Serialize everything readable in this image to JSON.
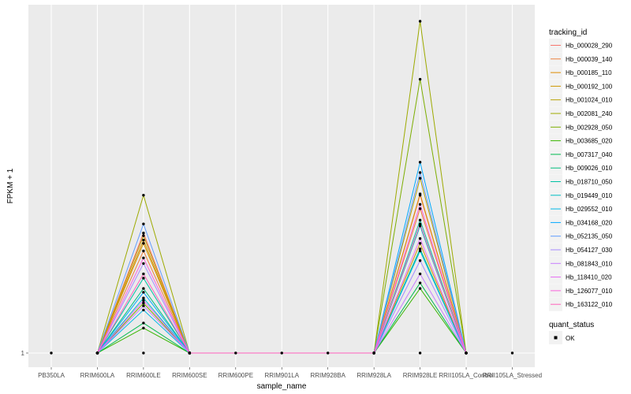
{
  "chart_data": {
    "type": "line",
    "xlabel": "sample_name",
    "ylabel": "FPKM + 1",
    "y_scale": "log",
    "y_ticks": [
      "1"
    ],
    "grid": true,
    "legend_placement": "right",
    "background_color": "#ebebeb",
    "grid_color": "#ffffff",
    "categories": [
      "PB350LA",
      "RRIM600LA",
      "RRIM600LE",
      "RRIM600SE",
      "RRIM600PE",
      "RRIM901LA",
      "RRIM928BA",
      "RRIM928LA",
      "RRIM928LE",
      "RRII105LA_Control",
      "RRII105LA_Stressed"
    ],
    "category_labels": [
      "PB350LA",
      "RRIM600LA",
      "RRIM600LE",
      "RRIM600SE",
      "RRIM600PE",
      "RRIM901LA",
      "RRIM928BA",
      "RRIM928LA",
      "RRIM928LE",
      "RRII105LA_Control",
      "RRII105LA_Stressed"
    ],
    "legend_title": "tracking_id",
    "series": [
      {
        "name": "Hb_000028_290",
        "color": "#f8766d",
        "values": [
          null,
          1,
          28,
          1,
          null,
          null,
          null,
          1,
          80,
          1,
          null
        ]
      },
      {
        "name": "Hb_000039_140",
        "color": "#ed813e",
        "values": [
          null,
          1,
          17,
          1,
          null,
          null,
          null,
          1,
          55,
          1,
          null
        ]
      },
      {
        "name": "Hb_000185_110",
        "color": "#de8c00",
        "values": [
          null,
          1,
          23,
          1,
          null,
          null,
          null,
          1,
          83,
          1,
          null
        ]
      },
      {
        "name": "Hb_000192_100",
        "color": "#cd9600",
        "values": [
          null,
          1,
          21,
          1,
          null,
          null,
          null,
          1,
          21,
          1,
          null
        ]
      },
      {
        "name": "Hb_001024_010",
        "color": "#b79f00",
        "values": [
          null,
          1,
          26,
          1,
          null,
          null,
          null,
          1,
          128,
          1,
          null
        ]
      },
      {
        "name": "Hb_002081_240",
        "color": "#9daa00",
        "values": [
          null,
          1,
          80,
          1,
          null,
          null,
          null,
          1,
          10000,
          1,
          null
        ]
      },
      {
        "name": "Hb_002928_050",
        "color": "#7cae00",
        "values": [
          null,
          1,
          4,
          1,
          null,
          null,
          null,
          1,
          2000,
          1,
          null
        ]
      },
      {
        "name": "Hb_003685_020",
        "color": "#39b600",
        "values": [
          null,
          1,
          2,
          1,
          null,
          null,
          null,
          1,
          6,
          1,
          null
        ]
      },
      {
        "name": "Hb_007317_040",
        "color": "#00bb4e",
        "values": [
          null,
          1,
          2.3,
          1,
          null,
          null,
          null,
          1,
          7,
          1,
          null
        ]
      },
      {
        "name": "Hb_009026_010",
        "color": "#00bf7d",
        "values": [
          null,
          1,
          6,
          1,
          null,
          null,
          null,
          1,
          18,
          1,
          null
        ]
      },
      {
        "name": "Hb_018710_050",
        "color": "#00c1a3",
        "values": [
          null,
          1,
          8,
          1,
          null,
          null,
          null,
          1,
          40,
          1,
          null
        ]
      },
      {
        "name": "Hb_019449_010",
        "color": "#00bfc4",
        "values": [
          null,
          1,
          4.6,
          1,
          null,
          null,
          null,
          1,
          34,
          1,
          null
        ]
      },
      {
        "name": "Hb_029552_010",
        "color": "#00b8e7",
        "values": [
          null,
          1,
          3.3,
          1,
          null,
          null,
          null,
          1,
          17,
          1,
          null
        ]
      },
      {
        "name": "Hb_034168_020",
        "color": "#00a9ff",
        "values": [
          null,
          1,
          5.4,
          1,
          null,
          null,
          null,
          1,
          200,
          1,
          null
        ]
      },
      {
        "name": "Hb_052135_050",
        "color": "#619cff",
        "values": [
          null,
          1,
          36,
          1,
          null,
          null,
          null,
          1,
          150,
          1,
          null
        ]
      },
      {
        "name": "Hb_054127_030",
        "color": "#a58aff",
        "values": [
          null,
          1,
          12,
          1,
          null,
          null,
          null,
          1,
          13,
          1,
          null
        ]
      },
      {
        "name": "Hb_081843_010",
        "color": "#c77cff",
        "values": [
          null,
          1,
          3.7,
          1,
          null,
          null,
          null,
          1,
          9,
          1,
          null
        ]
      },
      {
        "name": "Hb_118410_020",
        "color": "#e76bf3",
        "values": [
          null,
          1,
          4.3,
          1,
          null,
          null,
          null,
          1,
          24,
          1,
          null
        ]
      },
      {
        "name": "Hb_126077_010",
        "color": "#fa62db",
        "values": [
          null,
          1,
          14,
          1,
          null,
          null,
          null,
          1,
          62,
          1,
          null
        ]
      },
      {
        "name": "Hb_163122_010",
        "color": "#ff62bc",
        "values": [
          null,
          1,
          9,
          1,
          null,
          null,
          null,
          1,
          36,
          1,
          null
        ]
      }
    ],
    "quant_status_values": [
      1,
      1,
      1,
      1,
      1,
      1,
      1,
      1,
      1,
      1,
      1
    ],
    "legend2_title": "quant_status",
    "legend2_entries": [
      "OK"
    ]
  }
}
